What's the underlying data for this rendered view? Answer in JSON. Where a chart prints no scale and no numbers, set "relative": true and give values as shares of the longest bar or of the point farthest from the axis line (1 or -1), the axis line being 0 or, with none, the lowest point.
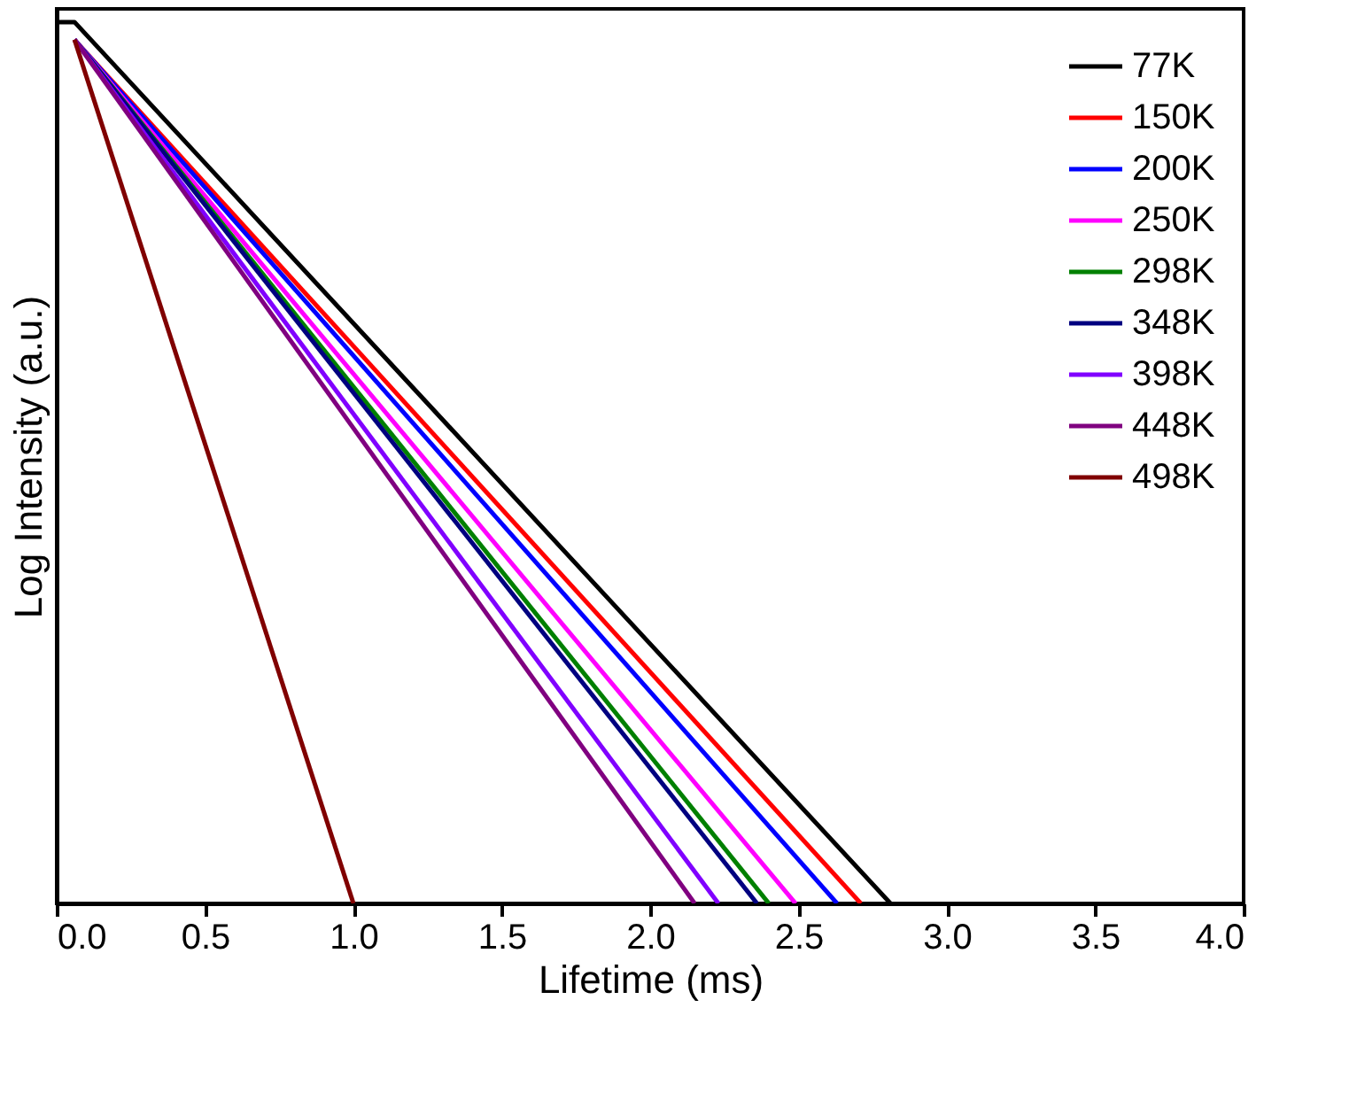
{
  "chart_data": {
    "type": "line",
    "xlabel": "Lifetime (ms)",
    "ylabel": "Log Intensity (a.u.)",
    "relative": true,
    "xlim": [
      0,
      4
    ],
    "xticks": [
      {
        "value": 0,
        "label": "0.0"
      },
      0.5,
      {
        "value": 1,
        "label": "1.0"
      },
      1.5,
      {
        "value": 2,
        "label": "2.0"
      },
      2.5,
      {
        "value": 3,
        "label": "3.0"
      },
      3.5,
      {
        "value": 4,
        "label": "4.0"
      }
    ],
    "legend": "top right",
    "grid": false,
    "marker": "none",
    "line_style": "solid",
    "series": [
      {
        "name": "77K",
        "color": "#000000",
        "x": [
          0,
          0.06,
          2.81
        ],
        "values": [
          1,
          1,
          0
        ]
      },
      {
        "name": "150K",
        "color": "#ff0000",
        "x": [
          0.06,
          2.71
        ],
        "values": [
          0.98,
          0
        ]
      },
      {
        "name": "200K",
        "color": "#0000ff",
        "x": [
          0.06,
          2.63
        ],
        "values": [
          0.98,
          0
        ]
      },
      {
        "name": "250K",
        "color": "#ff00ff",
        "x": [
          0.06,
          2.49
        ],
        "values": [
          0.98,
          0
        ]
      },
      {
        "name": "298K",
        "color": "#008000",
        "x": [
          0.06,
          2.4
        ],
        "values": [
          0.98,
          0
        ]
      },
      {
        "name": "348K",
        "color": "#000080",
        "x": [
          0.06,
          2.36
        ],
        "values": [
          0.98,
          0
        ]
      },
      {
        "name": "398K",
        "color": "#8000ff",
        "x": [
          0.06,
          2.23
        ],
        "values": [
          0.98,
          0
        ]
      },
      {
        "name": "448K",
        "color": "#800080",
        "x": [
          0.06,
          2.15
        ],
        "values": [
          0.98,
          0
        ]
      },
      {
        "name": "498K",
        "color": "#800000",
        "x": [
          0.06,
          1.0
        ],
        "values": [
          0.98,
          0
        ]
      }
    ]
  }
}
